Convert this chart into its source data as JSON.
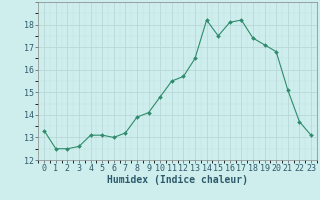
{
  "x": [
    0,
    1,
    2,
    3,
    4,
    5,
    6,
    7,
    8,
    9,
    10,
    11,
    12,
    13,
    14,
    15,
    16,
    17,
    18,
    19,
    20,
    21,
    22,
    23
  ],
  "y": [
    13.3,
    12.5,
    12.5,
    12.6,
    13.1,
    13.1,
    13.0,
    13.2,
    13.9,
    14.1,
    14.8,
    15.5,
    15.7,
    16.5,
    18.2,
    17.5,
    18.1,
    18.2,
    17.4,
    17.1,
    16.8,
    15.1,
    13.7,
    13.1
  ],
  "xlim": [
    -0.5,
    23.5
  ],
  "ylim": [
    12,
    19
  ],
  "yticks": [
    12,
    13,
    14,
    15,
    16,
    17,
    18
  ],
  "xticks": [
    0,
    1,
    2,
    3,
    4,
    5,
    6,
    7,
    8,
    9,
    10,
    11,
    12,
    13,
    14,
    15,
    16,
    17,
    18,
    19,
    20,
    21,
    22,
    23
  ],
  "xlabel": "Humidex (Indice chaleur)",
  "line_color": "#2e8b6b",
  "marker_color": "#2e8b6b",
  "bg_color": "#ceeeed",
  "grid_color_major": "#b8d4d4",
  "xlabel_fontsize": 7,
  "tick_fontsize": 6,
  "xlabel_color": "#2e5a6b",
  "ytick_color": "#2e5a6b",
  "xtick_color": "#2e5a6b"
}
